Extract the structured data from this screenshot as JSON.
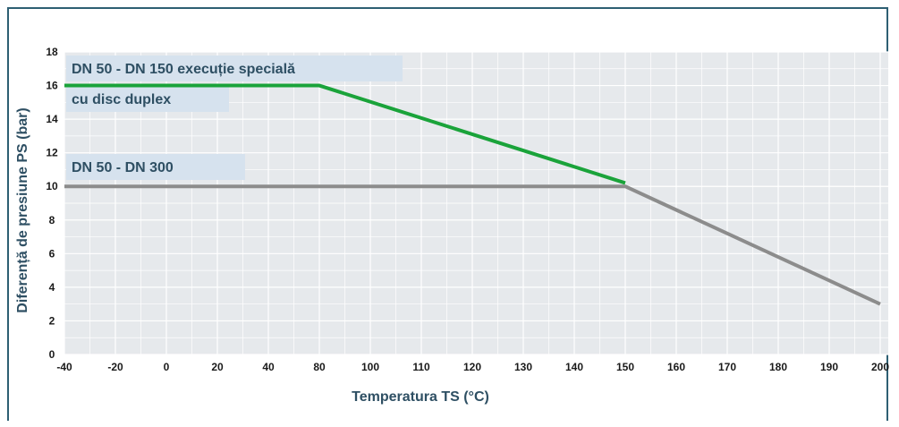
{
  "chart_data": {
    "type": "line",
    "title": "",
    "xlabel": "Temperatura TS (°C)",
    "ylabel": "Diferență de presiune PS (bar)",
    "xlim": [
      -40,
      200
    ],
    "ylim": [
      0,
      18
    ],
    "x_ticks": [
      -40,
      -20,
      0,
      20,
      40,
      80,
      100,
      110,
      120,
      130,
      140,
      150,
      160,
      170,
      180,
      190,
      200
    ],
    "y_ticks": [
      0,
      2,
      4,
      6,
      8,
      10,
      12,
      14,
      16,
      18
    ],
    "grid": true,
    "series": [
      {
        "name": "DN 50 - DN 150 execuție specială cu disc duplex",
        "label_lines": [
          "DN 50 - DN 150 execuție specială",
          "cu disc duplex"
        ],
        "color": "#1aa33a",
        "points": [
          [
            -40,
            16
          ],
          [
            80,
            16
          ],
          [
            150,
            10.2
          ]
        ]
      },
      {
        "name": "DN 50 - DN 300",
        "label_lines": [
          "DN 50 - DN 300"
        ],
        "color": "#8c8c8c",
        "points": [
          [
            -40,
            10
          ],
          [
            150,
            10
          ],
          [
            200,
            3
          ]
        ]
      }
    ]
  },
  "colors": {
    "plot_background": "#e6e9ec",
    "grid": "#ffffff",
    "label_box": "#d6e2ee",
    "frame": "#2e5f73"
  }
}
